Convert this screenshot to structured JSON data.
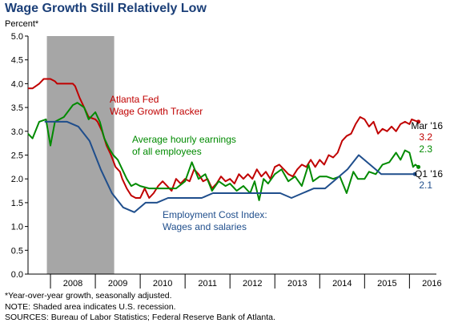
{
  "header": {
    "title": "Wage Growth Still Relatively Low",
    "unit": "Percent*"
  },
  "footnotes": {
    "line1": "*Year-over-year growth, seasonally adjusted.",
    "line2": "NOTE: Shaded area indicates U.S. recession.",
    "line3": "SOURCES: Bureau of Labor Statistics; Federal Reserve Bank of Atlanta."
  },
  "colors": {
    "atlanta": "#c00000",
    "ahe": "#008a00",
    "eci": "#1f4e8c",
    "recession": "#a6a6a6",
    "axis": "#000000"
  },
  "chart_data": {
    "type": "line",
    "title": "Wage Growth Still Relatively Low",
    "ylabel": "Percent*",
    "xlabel": "",
    "xlim": [
      2007.5,
      2016.6
    ],
    "ylim": [
      0,
      5.0
    ],
    "yticks": [
      "0.0",
      "0.5",
      "1.0",
      "1.5",
      "2.0",
      "2.5",
      "3.0",
      "3.5",
      "4.0",
      "4.5",
      "5.0"
    ],
    "xticks": [
      "2008",
      "2009",
      "2010",
      "2011",
      "2012",
      "2013",
      "2014",
      "2015",
      "2016"
    ],
    "grid": false,
    "recession": [
      2007.92,
      2009.42
    ],
    "series": [
      {
        "name": "Atlanta Fed Wage Growth Tracker",
        "color": "#c00000",
        "label": "Atlanta Fed\nWage Growth Tracker",
        "end_label": "Mar '16",
        "end_value": "3.2",
        "points": [
          [
            2007.5,
            3.9
          ],
          [
            2007.6,
            3.9
          ],
          [
            2007.75,
            4.0
          ],
          [
            2007.85,
            4.1
          ],
          [
            2008.0,
            4.1
          ],
          [
            2008.1,
            4.05
          ],
          [
            2008.15,
            4.0
          ],
          [
            2008.3,
            4.0
          ],
          [
            2008.5,
            4.0
          ],
          [
            2008.55,
            3.95
          ],
          [
            2008.65,
            3.7
          ],
          [
            2008.75,
            3.5
          ],
          [
            2008.85,
            3.3
          ],
          [
            2009.0,
            3.25
          ],
          [
            2009.05,
            3.2
          ],
          [
            2009.15,
            3.0
          ],
          [
            2009.25,
            2.7
          ],
          [
            2009.35,
            2.5
          ],
          [
            2009.45,
            2.25
          ],
          [
            2009.55,
            2.15
          ],
          [
            2009.6,
            2.0
          ],
          [
            2009.7,
            1.8
          ],
          [
            2009.8,
            1.65
          ],
          [
            2009.9,
            1.6
          ],
          [
            2010.0,
            1.6
          ],
          [
            2010.1,
            1.8
          ],
          [
            2010.2,
            1.6
          ],
          [
            2010.3,
            1.7
          ],
          [
            2010.4,
            1.85
          ],
          [
            2010.5,
            1.95
          ],
          [
            2010.6,
            1.85
          ],
          [
            2010.7,
            1.75
          ],
          [
            2010.8,
            2.0
          ],
          [
            2010.9,
            1.9
          ],
          [
            2011.0,
            2.0
          ],
          [
            2011.1,
            1.95
          ],
          [
            2011.2,
            2.2
          ],
          [
            2011.3,
            2.1
          ],
          [
            2011.4,
            1.95
          ],
          [
            2011.5,
            2.0
          ],
          [
            2011.6,
            1.8
          ],
          [
            2011.7,
            1.9
          ],
          [
            2011.8,
            2.05
          ],
          [
            2011.9,
            1.95
          ],
          [
            2012.0,
            2.0
          ],
          [
            2012.1,
            1.9
          ],
          [
            2012.2,
            2.1
          ],
          [
            2012.3,
            2.0
          ],
          [
            2012.4,
            2.1
          ],
          [
            2012.5,
            2.0
          ],
          [
            2012.6,
            2.2
          ],
          [
            2012.7,
            2.05
          ],
          [
            2012.8,
            2.15
          ],
          [
            2012.9,
            2.0
          ],
          [
            2013.0,
            2.25
          ],
          [
            2013.1,
            2.3
          ],
          [
            2013.2,
            2.2
          ],
          [
            2013.3,
            2.1
          ],
          [
            2013.4,
            2.05
          ],
          [
            2013.5,
            2.2
          ],
          [
            2013.6,
            2.3
          ],
          [
            2013.7,
            2.25
          ],
          [
            2013.8,
            2.4
          ],
          [
            2013.9,
            2.25
          ],
          [
            2014.0,
            2.4
          ],
          [
            2014.1,
            2.3
          ],
          [
            2014.2,
            2.5
          ],
          [
            2014.3,
            2.45
          ],
          [
            2014.4,
            2.55
          ],
          [
            2014.5,
            2.8
          ],
          [
            2014.6,
            2.9
          ],
          [
            2014.7,
            2.95
          ],
          [
            2014.8,
            3.15
          ],
          [
            2014.9,
            3.3
          ],
          [
            2015.0,
            3.25
          ],
          [
            2015.1,
            3.1
          ],
          [
            2015.2,
            3.2
          ],
          [
            2015.3,
            2.95
          ],
          [
            2015.4,
            3.05
          ],
          [
            2015.5,
            3.0
          ],
          [
            2015.6,
            3.1
          ],
          [
            2015.7,
            3.0
          ],
          [
            2015.8,
            3.15
          ],
          [
            2015.9,
            3.2
          ],
          [
            2016.0,
            3.15
          ],
          [
            2016.05,
            3.25
          ],
          [
            2016.13,
            3.22
          ],
          [
            2016.2,
            3.2
          ]
        ]
      },
      {
        "name": "Average hourly earnings of all employees",
        "color": "#008a00",
        "label": "Average hourly earnings\nof all employees",
        "end_label": "",
        "end_value": "2.3",
        "points": [
          [
            2007.5,
            2.95
          ],
          [
            2007.6,
            2.85
          ],
          [
            2007.75,
            3.2
          ],
          [
            2007.9,
            3.25
          ],
          [
            2008.0,
            2.7
          ],
          [
            2008.1,
            3.2
          ],
          [
            2008.3,
            3.3
          ],
          [
            2008.5,
            3.55
          ],
          [
            2008.6,
            3.6
          ],
          [
            2008.75,
            3.5
          ],
          [
            2008.85,
            3.25
          ],
          [
            2009.0,
            3.4
          ],
          [
            2009.1,
            3.2
          ],
          [
            2009.2,
            2.85
          ],
          [
            2009.3,
            2.65
          ],
          [
            2009.4,
            2.5
          ],
          [
            2009.5,
            2.4
          ],
          [
            2009.6,
            2.2
          ],
          [
            2009.7,
            2.0
          ],
          [
            2009.8,
            1.85
          ],
          [
            2009.9,
            1.9
          ],
          [
            2010.0,
            1.85
          ],
          [
            2010.2,
            1.8
          ],
          [
            2010.4,
            1.8
          ],
          [
            2010.6,
            1.8
          ],
          [
            2010.8,
            1.8
          ],
          [
            2011.0,
            1.95
          ],
          [
            2011.15,
            2.35
          ],
          [
            2011.3,
            2.0
          ],
          [
            2011.45,
            2.1
          ],
          [
            2011.6,
            1.75
          ],
          [
            2011.75,
            1.95
          ],
          [
            2011.9,
            1.85
          ],
          [
            2012.0,
            1.9
          ],
          [
            2012.15,
            1.75
          ],
          [
            2012.3,
            1.85
          ],
          [
            2012.45,
            1.7
          ],
          [
            2012.55,
            1.95
          ],
          [
            2012.65,
            1.55
          ],
          [
            2012.75,
            2.0
          ],
          [
            2012.85,
            1.9
          ],
          [
            2013.0,
            2.1
          ],
          [
            2013.15,
            2.2
          ],
          [
            2013.3,
            1.95
          ],
          [
            2013.45,
            2.05
          ],
          [
            2013.6,
            1.85
          ],
          [
            2013.75,
            2.3
          ],
          [
            2013.85,
            1.95
          ],
          [
            2014.0,
            2.05
          ],
          [
            2014.15,
            2.05
          ],
          [
            2014.3,
            2.0
          ],
          [
            2014.45,
            2.05
          ],
          [
            2014.6,
            1.7
          ],
          [
            2014.75,
            2.15
          ],
          [
            2014.85,
            2.0
          ],
          [
            2015.0,
            2.0
          ],
          [
            2015.1,
            2.15
          ],
          [
            2015.25,
            2.1
          ],
          [
            2015.4,
            2.3
          ],
          [
            2015.55,
            2.35
          ],
          [
            2015.7,
            2.55
          ],
          [
            2015.8,
            2.4
          ],
          [
            2015.9,
            2.6
          ],
          [
            2016.0,
            2.55
          ],
          [
            2016.08,
            2.25
          ],
          [
            2016.13,
            2.3
          ],
          [
            2016.2,
            2.25
          ]
        ]
      },
      {
        "name": "Employment Cost Index: Wages and salaries",
        "color": "#1f4e8c",
        "label": "Employment Cost Index:\nWages and salaries",
        "end_label": "Q1 '16",
        "end_value": "2.1",
        "points": [
          [
            2007.87,
            3.2
          ],
          [
            2008.12,
            3.2
          ],
          [
            2008.37,
            3.2
          ],
          [
            2008.62,
            3.1
          ],
          [
            2008.87,
            2.8
          ],
          [
            2009.12,
            2.2
          ],
          [
            2009.37,
            1.7
          ],
          [
            2009.62,
            1.4
          ],
          [
            2009.87,
            1.3
          ],
          [
            2010.12,
            1.5
          ],
          [
            2010.37,
            1.5
          ],
          [
            2010.62,
            1.6
          ],
          [
            2010.87,
            1.6
          ],
          [
            2011.12,
            1.6
          ],
          [
            2011.37,
            1.6
          ],
          [
            2011.62,
            1.7
          ],
          [
            2011.87,
            1.7
          ],
          [
            2012.12,
            1.7
          ],
          [
            2012.37,
            1.7
          ],
          [
            2012.62,
            1.7
          ],
          [
            2012.87,
            1.7
          ],
          [
            2013.12,
            1.7
          ],
          [
            2013.37,
            1.6
          ],
          [
            2013.62,
            1.7
          ],
          [
            2013.87,
            1.8
          ],
          [
            2014.12,
            1.8
          ],
          [
            2014.37,
            2.0
          ],
          [
            2014.62,
            2.2
          ],
          [
            2014.87,
            2.5
          ],
          [
            2015.12,
            2.3
          ],
          [
            2015.37,
            2.1
          ],
          [
            2015.62,
            2.1
          ],
          [
            2015.87,
            2.1
          ],
          [
            2016.12,
            2.1
          ]
        ]
      }
    ],
    "annotations": [
      {
        "series": "Atlanta Fed Wage Growth Tracker",
        "text_lines": [
          "Atlanta Fed",
          "Wage Growth Tracker"
        ]
      },
      {
        "series": "Average hourly earnings of all employees",
        "text_lines": [
          "Average hourly earnings",
          "of all employees"
        ]
      },
      {
        "series": "Employment Cost Index: Wages and salaries",
        "text_lines": [
          "Employment Cost Index:",
          "Wages and salaries"
        ]
      }
    ]
  }
}
